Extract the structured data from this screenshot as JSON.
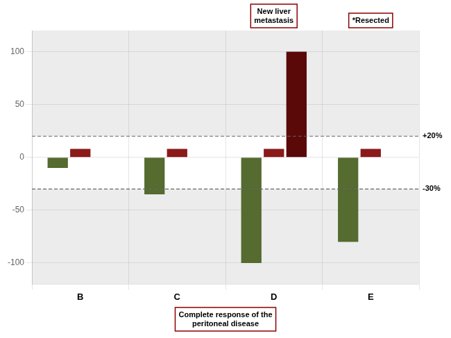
{
  "chart_data": {
    "type": "bar",
    "categories": [
      "B",
      "C",
      "D",
      "E"
    ],
    "series": [
      {
        "color": "#556b2f",
        "values": [
          -10,
          -35,
          -100,
          -80
        ]
      },
      {
        "color": "#8b1a1a",
        "values": [
          8,
          8,
          8,
          8
        ]
      },
      {
        "color": "#5a0808",
        "values": [
          null,
          null,
          100,
          null
        ]
      }
    ],
    "ylim": [
      -120,
      120
    ],
    "yticks": [
      -100,
      -50,
      0,
      50,
      100
    ],
    "grid": true,
    "reference_lines": [
      {
        "value": 20,
        "label": "+20%"
      },
      {
        "value": -30,
        "label": "-30%"
      }
    ],
    "annotations": [
      {
        "text": "New liver\nmetastasis",
        "category": "D"
      },
      {
        "text": "*Resected",
        "category": "E"
      },
      {
        "text": "Complete response of the\nperitoneal disease"
      }
    ]
  }
}
